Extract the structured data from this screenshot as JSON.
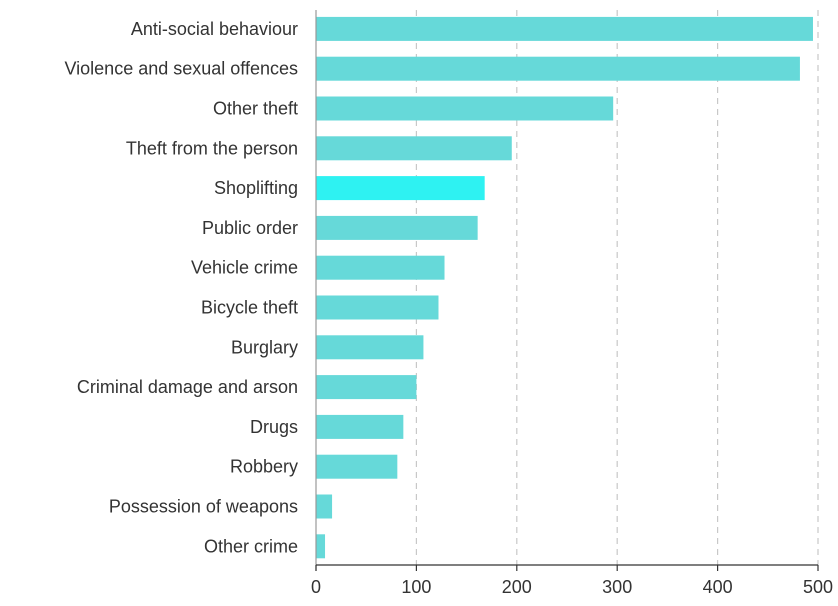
{
  "chart_data": {
    "type": "bar",
    "orientation": "horizontal",
    "categories": [
      "Anti-social behaviour",
      "Violence and sexual offences",
      "Other theft",
      "Theft from the person",
      "Shoplifting",
      "Public order",
      "Vehicle crime",
      "Bicycle theft",
      "Burglary",
      "Criminal damage and arson",
      "Drugs",
      "Robbery",
      "Possession of weapons",
      "Other crime"
    ],
    "values": [
      495,
      482,
      296,
      195,
      168,
      161,
      128,
      122,
      107,
      100,
      87,
      81,
      16,
      9
    ],
    "highlight_index": 4,
    "xlim": [
      0,
      500
    ],
    "xticks": [
      0,
      100,
      200,
      300,
      400,
      500
    ],
    "xtick_labels": [
      "0",
      "100",
      "200",
      "300",
      "400",
      "500"
    ],
    "title": "",
    "xlabel": "",
    "ylabel": "",
    "grid": "vertical dashed",
    "legend": "none",
    "colors": {
      "bar": "#66d9d9",
      "highlight": "#2ef2f2",
      "grid": "#c8c8c8",
      "axis": "#333333",
      "text": "#333333"
    }
  }
}
